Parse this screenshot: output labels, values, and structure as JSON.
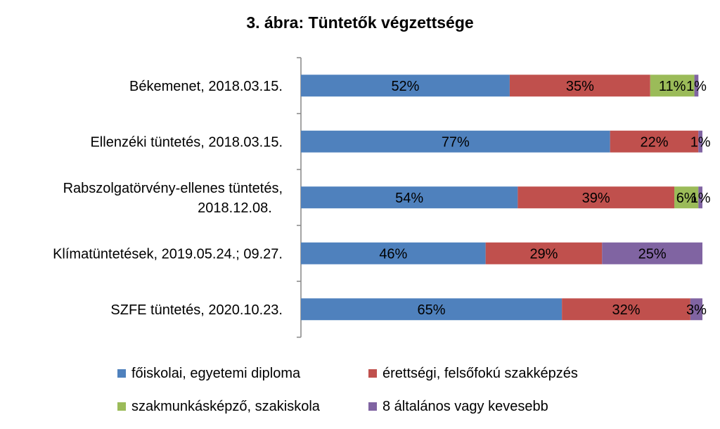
{
  "chart_data": {
    "type": "bar",
    "orientation": "horizontal",
    "stacked": true,
    "title": "3. ábra: Tüntetők végzettsége",
    "xlabel": "",
    "ylabel": "",
    "xlim": [
      0,
      100
    ],
    "grid": false,
    "legend_position": "bottom",
    "categories": [
      [
        "Békemenet, 2018.03.15."
      ],
      [
        "Ellenzéki tüntetés, 2018.03.15."
      ],
      [
        "Rabszolgatörvény-ellenes tüntetés,",
        "2018.12.08."
      ],
      [
        "Klímatüntetések, 2019.05.24.; 09.27."
      ],
      [
        "SZFE tüntetés, 2020.10.23."
      ]
    ],
    "series": [
      {
        "name": "főiskolai, egyetemi diploma",
        "color": "#4F81BD",
        "values": [
          52,
          77,
          54,
          46,
          65
        ]
      },
      {
        "name": "érettségi, felsőfokú szakképzés",
        "color": "#C0504D",
        "values": [
          35,
          22,
          39,
          29,
          32
        ]
      },
      {
        "name": "szakmunkásképző, szakiskola",
        "color": "#9BBB59",
        "values": [
          11,
          0,
          6,
          0,
          0
        ]
      },
      {
        "name": "8 általános vagy kevesebb",
        "color": "#8064A2",
        "values": [
          1,
          1,
          1,
          25,
          3
        ]
      }
    ],
    "value_suffix": "%"
  }
}
